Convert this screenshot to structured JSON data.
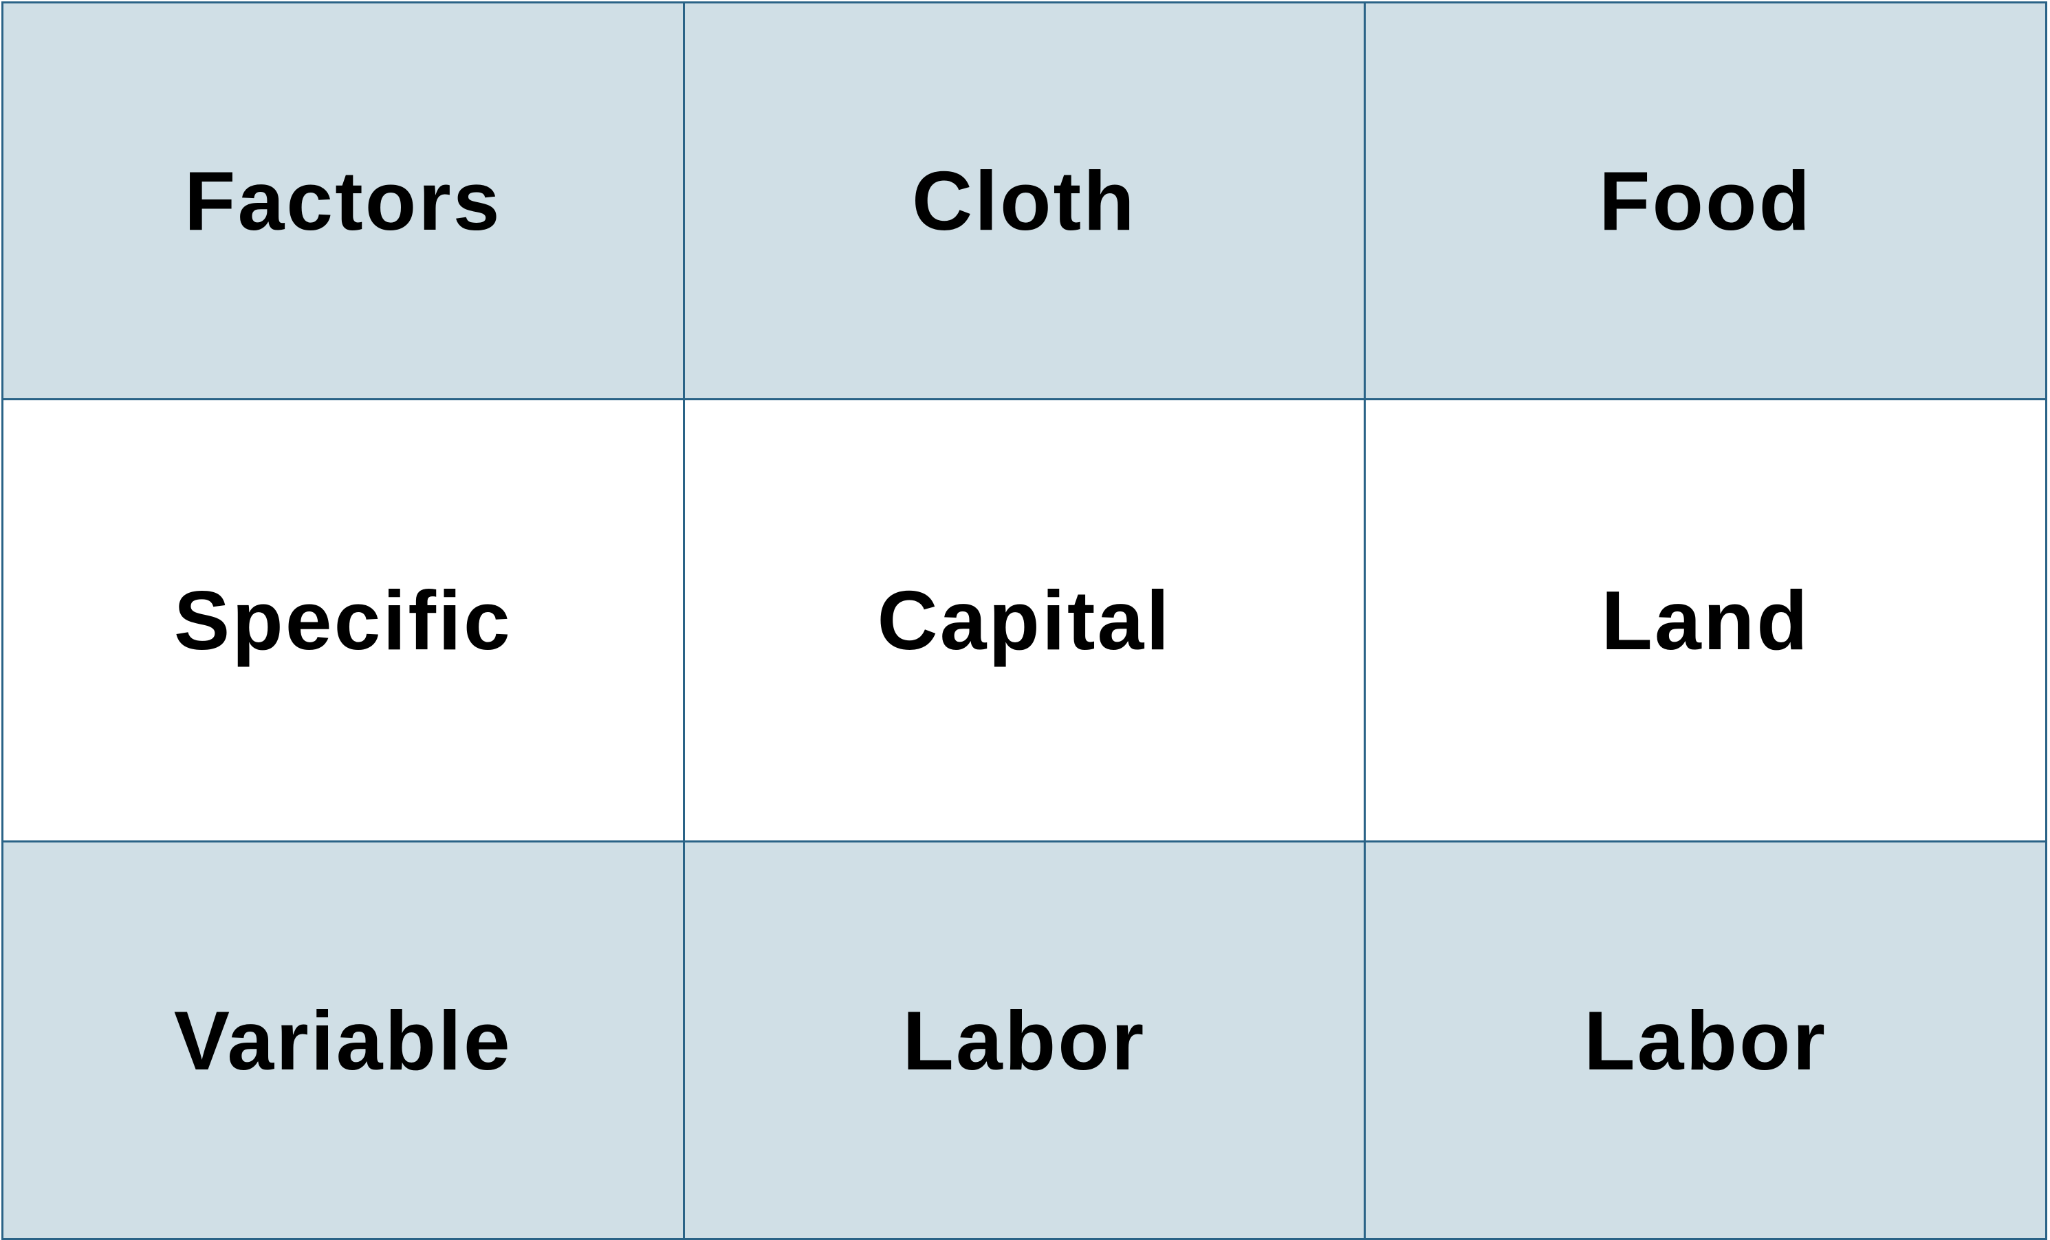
{
  "table": {
    "colors": {
      "border": "#2a6387",
      "shaded_row_background": "#d0dfe6",
      "plain_row_background": "#ffffff",
      "text": "#000000"
    },
    "header": [
      "Factors",
      "Cloth",
      "Food"
    ],
    "rows": [
      [
        "Specific",
        "Capital",
        "Land"
      ],
      [
        "Variable",
        "Labor",
        "Labor"
      ]
    ]
  }
}
